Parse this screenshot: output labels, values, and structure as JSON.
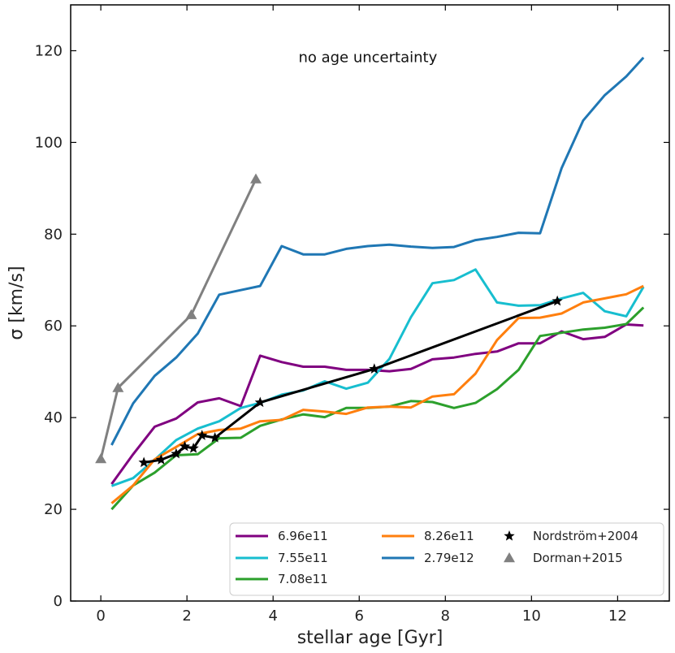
{
  "chart_data": {
    "type": "line",
    "title": "",
    "annotation": "no age uncertainty",
    "xlabel": "stellar age [Gyr]",
    "ylabel": "σ [km/s]",
    "xlim": [
      -0.7,
      13.2
    ],
    "ylim": [
      0,
      130
    ],
    "xticks": [
      0,
      2,
      4,
      6,
      8,
      10,
      12
    ],
    "yticks": [
      0,
      20,
      40,
      60,
      80,
      100,
      120
    ],
    "legend_position": "lower-right",
    "series": [
      {
        "name": "6.96e11",
        "color": "#800080",
        "x": [
          0.25,
          0.75,
          1.25,
          1.75,
          2.25,
          2.75,
          3.25,
          3.7,
          4.2,
          4.7,
          5.2,
          5.7,
          6.2,
          6.7,
          7.2,
          7.7,
          8.2,
          8.7,
          9.2,
          9.7,
          10.2,
          10.7,
          11.2,
          11.7,
          12.2,
          12.6
        ],
        "y": [
          25.5,
          32,
          38,
          39.8,
          43.3,
          44.2,
          42.5,
          53.5,
          52.1,
          51.1,
          51.1,
          50.4,
          50.4,
          50.1,
          50.6,
          52.7,
          53.1,
          53.9,
          54.4,
          56.2,
          56.2,
          58.8,
          57.1,
          57.6,
          60.3,
          60.1
        ]
      },
      {
        "name": "7.55e11",
        "color": "#17becf",
        "x": [
          0.25,
          0.75,
          1.25,
          1.75,
          2.25,
          2.75,
          3.25,
          3.7,
          4.2,
          4.7,
          5.2,
          5.7,
          6.2,
          6.7,
          7.2,
          7.7,
          8.2,
          8.7,
          9.2,
          9.7,
          10.2,
          10.7,
          11.2,
          11.7,
          12.2,
          12.6
        ],
        "y": [
          25.1,
          26.8,
          30.8,
          35.1,
          37.6,
          39.2,
          42.1,
          43.2,
          45.0,
          45.9,
          47.9,
          46.3,
          47.6,
          52.8,
          61.9,
          69.3,
          70.0,
          72.3,
          65.1,
          64.4,
          64.5,
          66.0,
          67.2,
          63.2,
          62.1,
          68.5
        ]
      },
      {
        "name": "7.08e11",
        "color": "#2ca02c",
        "x": [
          0.25,
          0.75,
          1.25,
          1.75,
          2.25,
          2.75,
          3.25,
          3.7,
          4.2,
          4.7,
          5.2,
          5.7,
          6.2,
          6.7,
          7.2,
          7.7,
          8.2,
          8.7,
          9.2,
          9.7,
          10.2,
          10.7,
          11.2,
          11.7,
          12.2,
          12.6
        ],
        "y": [
          20.0,
          25.2,
          28.0,
          31.8,
          32.0,
          35.5,
          35.6,
          38.2,
          39.6,
          40.7,
          40.1,
          42.1,
          42.1,
          42.4,
          43.6,
          43.4,
          42.1,
          43.2,
          46.2,
          50.4,
          57.8,
          58.5,
          59.2,
          59.6,
          60.4,
          64.0
        ]
      },
      {
        "name": "8.26e11",
        "color": "#ff7f0e",
        "x": [
          0.25,
          0.75,
          1.25,
          1.75,
          2.25,
          2.75,
          3.25,
          3.7,
          4.2,
          4.7,
          5.2,
          5.7,
          6.2,
          6.7,
          7.2,
          7.7,
          8.2,
          8.7,
          9.2,
          9.7,
          10.2,
          10.7,
          11.2,
          11.7,
          12.2,
          12.6
        ],
        "y": [
          21.3,
          25.2,
          30.9,
          33.6,
          36.4,
          37.3,
          37.6,
          39.2,
          39.5,
          41.7,
          41.3,
          40.8,
          42.2,
          42.4,
          42.2,
          44.6,
          45.1,
          49.6,
          56.9,
          61.7,
          61.8,
          62.7,
          65.1,
          66.0,
          66.9,
          68.7
        ]
      },
      {
        "name": "2.79e12",
        "color": "#1f77b4",
        "x": [
          0.25,
          0.75,
          1.25,
          1.75,
          2.25,
          2.75,
          3.25,
          3.7,
          4.2,
          4.7,
          5.2,
          5.7,
          6.2,
          6.7,
          7.2,
          7.7,
          8.2,
          8.7,
          9.2,
          9.7,
          10.2,
          10.7,
          11.2,
          11.7,
          12.2,
          12.6
        ],
        "y": [
          34.0,
          43.1,
          49.1,
          53.1,
          58.3,
          66.8,
          67.8,
          68.7,
          77.4,
          75.6,
          75.6,
          76.8,
          77.4,
          77.7,
          77.3,
          77.0,
          77.2,
          78.7,
          79.4,
          80.3,
          80.2,
          94.4,
          104.8,
          110.3,
          114.4,
          118.5
        ]
      },
      {
        "name": "Nordström+2004",
        "color": "#000000",
        "marker": "star",
        "x": [
          1.0,
          1.4,
          1.75,
          1.95,
          2.15,
          2.35,
          2.65,
          3.7,
          6.35,
          10.6
        ],
        "y": [
          30.2,
          30.8,
          32.1,
          33.7,
          33.3,
          36.1,
          35.6,
          43.3,
          50.6,
          65.4
        ]
      },
      {
        "name": "Dorman+2015",
        "color": "#808080",
        "marker": "triangle",
        "x": [
          0.0,
          0.4,
          2.1,
          3.6
        ],
        "y": [
          31.0,
          46.5,
          62.4,
          92.0
        ]
      }
    ],
    "legend_order": [
      "6.96e11",
      "8.26e11",
      "Nordström+2004",
      "7.55e11",
      "2.79e12",
      "Dorman+2015",
      "7.08e11"
    ]
  }
}
